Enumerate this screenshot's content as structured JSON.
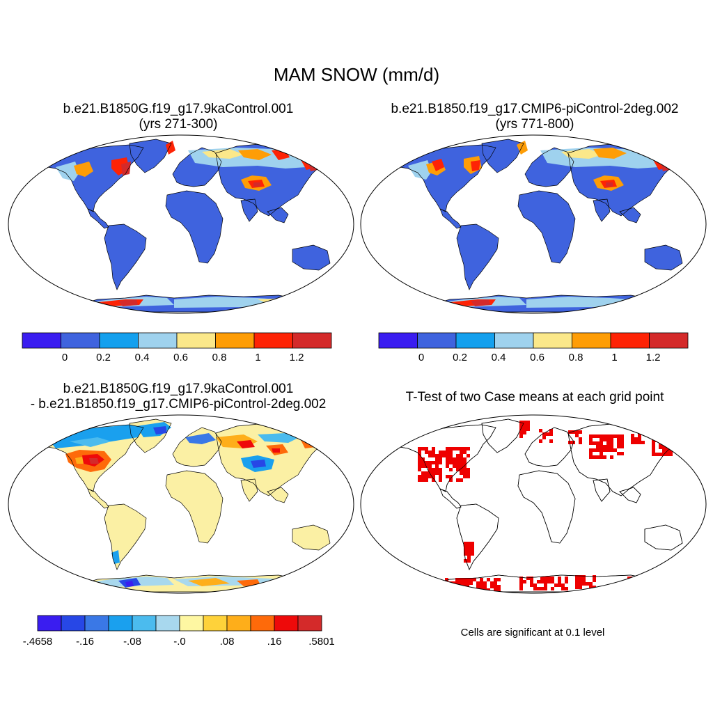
{
  "figure": {
    "title": "MAM SNOW (mm/d)"
  },
  "panels": [
    {
      "title_line1": "b.e21.B1850G.f19_g17.9kaControl.001",
      "title_line2": "(yrs 271-300)"
    },
    {
      "title_line1": "b.e21.B1850.f19_g17.CMIP6-piControl-2deg.002",
      "title_line2": "(yrs 771-800)"
    },
    {
      "title_line1": "b.e21.B1850G.f19_g17.9kaControl.001",
      "title_line2": "- b.e21.B1850.f19_g17.CMIP6-piControl-2deg.002"
    },
    {
      "title_line1": "T-Test of two Case means at each grid point",
      "note": "Cells are significant at 0.1 level"
    }
  ],
  "colorbars": {
    "abs": {
      "colors": [
        "#3a1df0",
        "#3f63de",
        "#14a0ee",
        "#9fd2ee",
        "#fbe88a",
        "#fe9d06",
        "#fe2305",
        "#d42a2a"
      ],
      "labels": [
        "0",
        "0.2",
        "0.4",
        "0.6",
        "0.8",
        "1",
        "1.2"
      ]
    },
    "diff": {
      "colors": [
        "#3a1df0",
        "#2747e6",
        "#3a78e6",
        "#1aa0ee",
        "#4bbbee",
        "#a8d8ee",
        "#fef7a2",
        "#fed23a",
        "#feae1a",
        "#fe6a0a",
        "#ee0a0a",
        "#d42a2a"
      ],
      "labels": [
        "-.4658",
        "-.16",
        "-.08",
        "-.0",
        ".08",
        ".16",
        ".5801"
      ]
    }
  },
  "colors": {
    "land_base": "#3f63de",
    "diff_base": "#fbf0a4",
    "sig": "#ee0000"
  }
}
